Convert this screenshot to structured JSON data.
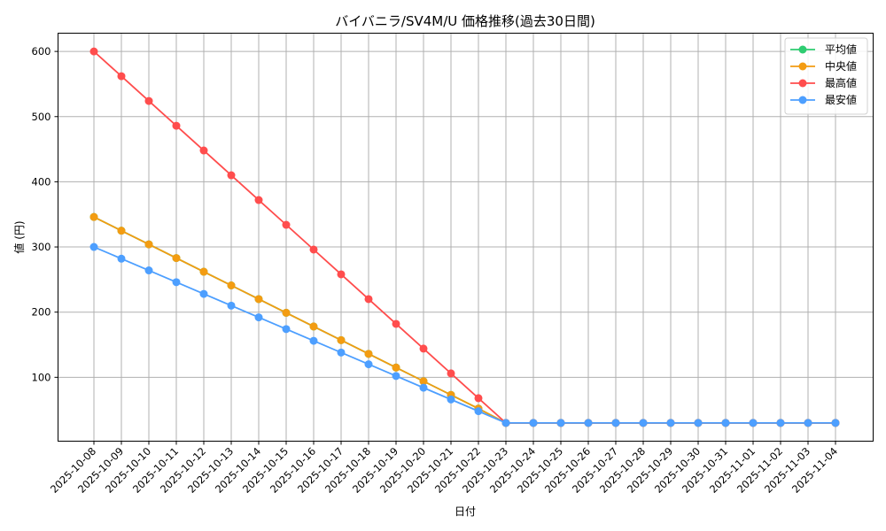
{
  "chart_data": {
    "type": "line",
    "title": "バイバニラ/SV4M/U 価格推移(過去30日間)",
    "xlabel": "日付",
    "ylabel": "値 (円)",
    "ylim": [
      2,
      628
    ],
    "yticks": [
      100,
      200,
      300,
      400,
      500,
      600
    ],
    "grid": true,
    "legend_position": "upper right",
    "x": [
      "2025-10-08",
      "2025-10-09",
      "2025-10-10",
      "2025-10-11",
      "2025-10-12",
      "2025-10-13",
      "2025-10-14",
      "2025-10-15",
      "2025-10-16",
      "2025-10-17",
      "2025-10-18",
      "2025-10-19",
      "2025-10-20",
      "2025-10-21",
      "2025-10-22",
      "2025-10-23",
      "2025-10-24",
      "2025-10-25",
      "2025-10-26",
      "2025-10-27",
      "2025-10-28",
      "2025-10-29",
      "2025-10-30",
      "2025-10-31",
      "2025-11-01",
      "2025-11-02",
      "2025-11-03",
      "2025-11-04"
    ],
    "series": [
      {
        "name": "平均値",
        "color": "#2ecc71",
        "values": [
          346,
          325,
          304,
          283,
          262,
          241,
          220,
          199,
          178,
          157,
          136,
          115,
          94,
          73,
          52,
          30,
          30,
          30,
          30,
          30,
          30,
          30,
          30,
          30,
          30,
          30,
          30,
          30
        ]
      },
      {
        "name": "中央値",
        "color": "#f39c12",
        "values": [
          346,
          325,
          304,
          283,
          262,
          241,
          220,
          199,
          178,
          157,
          136,
          115,
          94,
          73,
          52,
          30,
          30,
          30,
          30,
          30,
          30,
          30,
          30,
          30,
          30,
          30,
          30,
          30
        ]
      },
      {
        "name": "最高値",
        "color": "#ff4d4d",
        "values": [
          600,
          562,
          524,
          486,
          448,
          410,
          372,
          334,
          296,
          258,
          220,
          182,
          144,
          106,
          68,
          30,
          30,
          30,
          30,
          30,
          30,
          30,
          30,
          30,
          30,
          30,
          30,
          30
        ]
      },
      {
        "name": "最安値",
        "color": "#4d9fff",
        "values": [
          300,
          282,
          264,
          246,
          228,
          210,
          192,
          174,
          156,
          138,
          120,
          102,
          84,
          66,
          48,
          30,
          30,
          30,
          30,
          30,
          30,
          30,
          30,
          30,
          30,
          30,
          30,
          30
        ]
      }
    ]
  }
}
